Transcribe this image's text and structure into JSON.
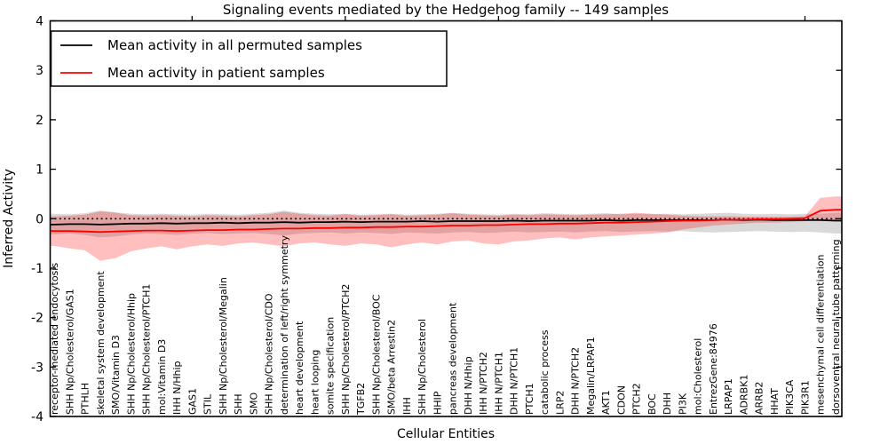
{
  "title": "Signaling events mediated by the Hedgehog family -- 149 samples",
  "legend": {
    "position": "upper left",
    "entries": [
      {
        "label": "Mean activity in all permuted samples",
        "color": "#000000"
      },
      {
        "label": "Mean activity in patient samples",
        "color": "#ff0000"
      }
    ]
  },
  "chart_data": {
    "type": "line",
    "title": "Signaling events mediated by the Hedgehog family -- 149 samples",
    "xlabel": "Cellular Entities",
    "ylabel": "Inferred Activity",
    "ylim": [
      -4,
      4
    ],
    "yticks": [
      4,
      3,
      2,
      1,
      0,
      -1,
      -2,
      -3,
      -4
    ],
    "grid": false,
    "x_labels_rotation_deg": 90,
    "x_labels_inside_plot": true,
    "top_tick_indices": [
      9,
      19,
      29,
      39,
      49
    ],
    "colors": {
      "permuted_line": "#000000",
      "patient_line": "#ff0000",
      "permuted_band_fill": "#808080",
      "permuted_band_opacity": 0.3,
      "patient_band_fill": "#ff0000",
      "patient_band_opacity": 0.25,
      "reference_line": "#000000"
    },
    "categories": [
      "receptor-mediated endocytosis",
      "SHH Np/Cholesterol/GAS1",
      "PTHLH",
      "skeletal system development",
      "SMO/Vitamin D3",
      "SHH Np/Cholesterol/Hhip",
      "SHH Np/Cholesterol/PTCH1",
      "mol:Vitamin D3",
      "IHH N/Hhip",
      "GAS1",
      "STIL",
      "SHH Np/Cholesterol/Megalin",
      "SHH",
      "SMO",
      "SHH Np/Cholesterol/CDO",
      "determination of left/right symmetry",
      "heart development",
      "heart looping",
      "somite specification",
      "SHH Np/Cholesterol/PTCH2",
      "TGFB2",
      "SHH Np/Cholesterol/BOC",
      "SMO/beta Arrestin2",
      "IHH",
      "SHH Np/Cholesterol",
      "HHIP",
      "pancreas development",
      "DHH N/Hhip",
      "IHH N/PTCH2",
      "IHH N/PTCH1",
      "DHH N/PTCH1",
      "PTCH1",
      "catabolic process",
      "LRP2",
      "DHH N/PTCH2",
      "Megalin/LRPAP1",
      "AKT1",
      "CDON",
      "PTCH2",
      "BOC",
      "DHH",
      "PI3K",
      "mol:Cholesterol",
      "EntrezGene:84976",
      "LRPAP1",
      "ADRBK1",
      "ARRB2",
      "HHAT",
      "PIK3CA",
      "PIK3R1",
      "mesenchymal cell differentiation",
      "dorsoventral neural tube patterning"
    ],
    "series": [
      {
        "name": "Mean activity in all permuted samples",
        "type": "line",
        "style": "solid",
        "values": [
          -0.12,
          -0.11,
          -0.11,
          -0.12,
          -0.11,
          -0.1,
          -0.1,
          -0.09,
          -0.1,
          -0.09,
          -0.09,
          -0.08,
          -0.09,
          -0.08,
          -0.08,
          -0.07,
          -0.08,
          -0.07,
          -0.07,
          -0.06,
          -0.07,
          -0.06,
          -0.06,
          -0.06,
          -0.05,
          -0.06,
          -0.05,
          -0.05,
          -0.05,
          -0.05,
          -0.04,
          -0.05,
          -0.04,
          -0.04,
          -0.04,
          -0.04,
          -0.03,
          -0.04,
          -0.03,
          -0.03,
          -0.03,
          -0.03,
          -0.03,
          -0.03,
          -0.02,
          -0.03,
          -0.02,
          -0.03,
          -0.03,
          -0.03,
          -0.03,
          -0.04
        ]
      },
      {
        "name": "Mean activity in patient samples",
        "type": "line",
        "style": "solid",
        "values": [
          -0.25,
          -0.25,
          -0.26,
          -0.27,
          -0.26,
          -0.25,
          -0.24,
          -0.24,
          -0.25,
          -0.24,
          -0.23,
          -0.23,
          -0.22,
          -0.22,
          -0.21,
          -0.2,
          -0.2,
          -0.19,
          -0.19,
          -0.18,
          -0.18,
          -0.17,
          -0.17,
          -0.16,
          -0.16,
          -0.15,
          -0.14,
          -0.14,
          -0.13,
          -0.13,
          -0.12,
          -0.11,
          -0.11,
          -0.1,
          -0.1,
          -0.09,
          -0.08,
          -0.08,
          -0.07,
          -0.06,
          -0.05,
          -0.04,
          -0.04,
          -0.03,
          -0.02,
          -0.02,
          -0.01,
          -0.01,
          0.0,
          0.01,
          0.16,
          0.18
        ]
      },
      {
        "name": "Permuted samples band (std)",
        "type": "band",
        "upper": [
          0.1,
          0.09,
          0.11,
          0.16,
          0.13,
          0.1,
          0.09,
          0.1,
          0.09,
          0.08,
          0.1,
          0.09,
          0.08,
          0.1,
          0.12,
          0.16,
          0.12,
          0.1,
          0.09,
          0.1,
          0.08,
          0.09,
          0.1,
          0.08,
          0.09,
          0.1,
          0.12,
          0.1,
          0.09,
          0.08,
          0.1,
          0.09,
          0.11,
          0.1,
          0.09,
          0.1,
          0.11,
          0.09,
          0.1,
          0.09,
          0.1,
          0.09,
          0.1,
          0.11,
          0.12,
          0.1,
          0.09,
          0.1,
          0.09,
          0.1,
          0.1,
          0.12
        ],
        "lower": [
          -0.32,
          -0.3,
          -0.33,
          -0.38,
          -0.36,
          -0.32,
          -0.3,
          -0.31,
          -0.33,
          -0.3,
          -0.29,
          -0.31,
          -0.3,
          -0.29,
          -0.31,
          -0.34,
          -0.3,
          -0.29,
          -0.28,
          -0.3,
          -0.28,
          -0.29,
          -0.31,
          -0.28,
          -0.29,
          -0.3,
          -0.28,
          -0.27,
          -0.29,
          -0.28,
          -0.26,
          -0.28,
          -0.27,
          -0.26,
          -0.28,
          -0.26,
          -0.25,
          -0.27,
          -0.26,
          -0.25,
          -0.26,
          -0.25,
          -0.27,
          -0.28,
          -0.27,
          -0.26,
          -0.25,
          -0.26,
          -0.27,
          -0.26,
          -0.28,
          -0.3
        ]
      },
      {
        "name": "Patient samples band (std)",
        "type": "band",
        "upper": [
          0.05,
          0.06,
          0.08,
          0.15,
          0.12,
          0.07,
          0.06,
          0.07,
          0.06,
          0.05,
          0.07,
          0.06,
          0.05,
          0.07,
          0.09,
          0.14,
          0.1,
          0.07,
          0.06,
          0.09,
          0.06,
          0.07,
          0.09,
          0.06,
          0.07,
          0.08,
          0.11,
          0.08,
          0.07,
          0.06,
          0.08,
          0.07,
          0.09,
          0.08,
          0.07,
          0.08,
          0.09,
          0.1,
          0.12,
          0.1,
          0.08,
          0.06,
          0.05,
          0.05,
          0.05,
          0.04,
          0.04,
          0.04,
          0.04,
          0.05,
          0.42,
          0.45
        ],
        "lower": [
          -0.55,
          -0.6,
          -0.64,
          -0.85,
          -0.8,
          -0.66,
          -0.6,
          -0.56,
          -0.62,
          -0.56,
          -0.52,
          -0.55,
          -0.5,
          -0.48,
          -0.52,
          -0.56,
          -0.5,
          -0.48,
          -0.52,
          -0.55,
          -0.5,
          -0.52,
          -0.58,
          -0.52,
          -0.48,
          -0.52,
          -0.46,
          -0.44,
          -0.5,
          -0.52,
          -0.46,
          -0.44,
          -0.4,
          -0.38,
          -0.42,
          -0.38,
          -0.36,
          -0.34,
          -0.32,
          -0.3,
          -0.28,
          -0.22,
          -0.18,
          -0.14,
          -0.12,
          -0.1,
          -0.08,
          -0.08,
          -0.07,
          -0.05,
          -0.02,
          -0.02
        ]
      },
      {
        "name": "Zero reference (dotted)",
        "type": "hline",
        "style": "dotted",
        "value": 0.0
      }
    ]
  }
}
